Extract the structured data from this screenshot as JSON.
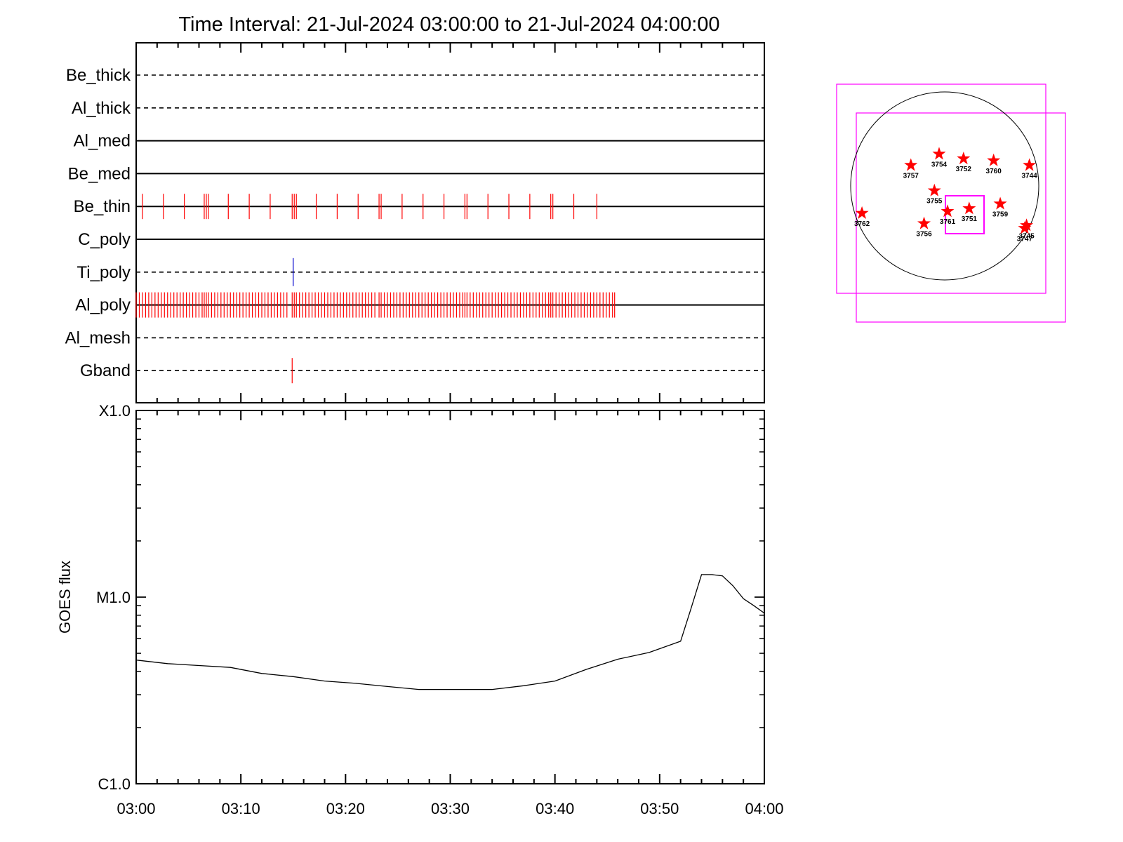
{
  "title": "Time Interval: 21-Jul-2024 03:00:00 to 21-Jul-2024 04:00:00",
  "chart_data": [
    {
      "type": "event-timeline",
      "x_start": "03:00",
      "x_end": "04:00",
      "channels": [
        {
          "name": "Be_thick",
          "line_style": "dashed",
          "events": [],
          "event_color": ""
        },
        {
          "name": "Al_thick",
          "line_style": "dashed",
          "events": [],
          "event_color": ""
        },
        {
          "name": "Al_med",
          "line_style": "solid",
          "events": [],
          "event_color": ""
        },
        {
          "name": "Be_med",
          "line_style": "solid",
          "events": [],
          "event_color": ""
        },
        {
          "name": "Be_thin",
          "line_style": "solid",
          "event_color": "#ff0000",
          "events": [
            0.6,
            2.6,
            4.6,
            6.5,
            6.7,
            6.9,
            8.8,
            10.8,
            12.8,
            14.9,
            15.1,
            15.3,
            17.2,
            19.2,
            21.2,
            23.2,
            23.4,
            25.4,
            27.4,
            29.4,
            31.4,
            31.6,
            33.6,
            35.6,
            37.6,
            39.6,
            39.8,
            41.8,
            44.0
          ],
          "event_half_height": 18
        },
        {
          "name": "C_poly",
          "line_style": "solid",
          "events": [],
          "event_color": ""
        },
        {
          "name": "Ti_poly",
          "line_style": "dashed",
          "event_color": "#0000cc",
          "events": [
            15.0
          ],
          "event_half_height": 20
        },
        {
          "name": "Al_poly",
          "line_style": "solid",
          "event_color": "#ff0000",
          "events": [
            0.0,
            0.3,
            0.6,
            0.9,
            1.2,
            1.5,
            1.8,
            2.1,
            2.4,
            2.7,
            3.0,
            3.3,
            3.6,
            3.9,
            4.2,
            4.5,
            4.8,
            5.1,
            5.4,
            5.7,
            6.0,
            6.3,
            6.5,
            6.7,
            6.9,
            7.2,
            7.5,
            7.8,
            8.1,
            8.4,
            8.7,
            9.0,
            9.3,
            9.6,
            9.9,
            10.2,
            10.5,
            10.8,
            11.1,
            11.4,
            11.7,
            12.0,
            12.3,
            12.6,
            12.9,
            13.2,
            13.5,
            13.8,
            14.1,
            14.4,
            14.9,
            15.1,
            15.3,
            15.6,
            15.9,
            16.2,
            16.5,
            16.8,
            17.1,
            17.4,
            17.7,
            18.0,
            18.3,
            18.6,
            18.9,
            19.2,
            19.5,
            19.8,
            20.1,
            20.4,
            20.7,
            21.0,
            21.3,
            21.6,
            21.9,
            22.2,
            22.5,
            22.8,
            23.2,
            23.4,
            23.7,
            24.0,
            24.3,
            24.6,
            24.9,
            25.2,
            25.5,
            25.8,
            26.1,
            26.4,
            26.7,
            27.0,
            27.3,
            27.6,
            27.9,
            28.2,
            28.5,
            28.8,
            29.1,
            29.4,
            29.7,
            30.0,
            30.3,
            30.6,
            30.9,
            31.2,
            31.4,
            31.6,
            31.9,
            32.2,
            32.5,
            32.8,
            33.1,
            33.4,
            33.7,
            34.0,
            34.3,
            34.6,
            34.9,
            35.2,
            35.5,
            35.8,
            36.1,
            36.4,
            36.7,
            37.0,
            37.3,
            37.6,
            37.9,
            38.2,
            38.5,
            38.8,
            39.1,
            39.4,
            39.6,
            39.8,
            40.1,
            40.4,
            40.7,
            41.0,
            41.3,
            41.6,
            41.9,
            42.2,
            42.5,
            42.8,
            43.1,
            43.4,
            43.7,
            44.0,
            44.3,
            44.6,
            44.9,
            45.2,
            45.5,
            45.7
          ],
          "event_half_height": 18
        },
        {
          "name": "Al_mesh",
          "line_style": "dashed",
          "events": [],
          "event_color": ""
        },
        {
          "name": "Gband",
          "line_style": "dashed",
          "event_color": "#ff0000",
          "events": [
            14.9
          ],
          "event_half_height": 18
        }
      ]
    },
    {
      "type": "line",
      "ylabel": "GOES flux",
      "y_scale": "log",
      "y_ticklabels": [
        "C1.0",
        "M1.0",
        "X1.0"
      ],
      "y_tick_values": [
        1e-06,
        1e-05,
        0.0001
      ],
      "ylim": [
        1e-06,
        0.0001
      ],
      "x_ticklabels": [
        "03:00",
        "03:10",
        "03:20",
        "03:30",
        "03:40",
        "03:50",
        "04:00"
      ],
      "x_tick_minutes": [
        0,
        10,
        20,
        30,
        40,
        50,
        60
      ],
      "xlim": [
        0,
        60
      ],
      "series": [
        {
          "color": "#000000",
          "x": [
            0,
            3,
            6,
            9,
            12,
            15,
            18,
            21,
            24,
            27,
            30,
            34,
            37,
            40,
            43,
            46,
            49,
            52,
            53,
            54,
            55,
            56,
            57,
            58,
            59,
            60
          ],
          "y": [
            4.6e-06,
            4.4e-06,
            4.3e-06,
            4.2e-06,
            3.9e-06,
            3.75e-06,
            3.55e-06,
            3.45e-06,
            3.32e-06,
            3.2e-06,
            3.2e-06,
            3.2e-06,
            3.35e-06,
            3.55e-06,
            4.1e-06,
            4.65e-06,
            5.05e-06,
            5.8e-06,
            8.7e-06,
            1.32e-05,
            1.32e-05,
            1.3e-05,
            1.15e-05,
            9.8e-06,
            9e-06,
            8.2e-06
          ]
        }
      ]
    },
    {
      "type": "scatter",
      "subtype": "solar-disk-map",
      "marker": "star",
      "marker_color": "#ff0000",
      "box_color": "#ff00ff",
      "points": [
        {
          "label": "3757",
          "x": -0.36,
          "y": 0.22
        },
        {
          "label": "3754",
          "x": -0.06,
          "y": 0.34
        },
        {
          "label": "3752",
          "x": 0.2,
          "y": 0.29
        },
        {
          "label": "3760",
          "x": 0.52,
          "y": 0.27
        },
        {
          "label": "3744",
          "x": 0.9,
          "y": 0.22
        },
        {
          "label": "3755",
          "x": -0.11,
          "y": -0.05
        },
        {
          "label": "3759",
          "x": 0.59,
          "y": -0.19
        },
        {
          "label": "3762",
          "x": -0.88,
          "y": -0.29
        },
        {
          "label": "3761",
          "x": 0.03,
          "y": -0.27
        },
        {
          "label": "3751",
          "x": 0.26,
          "y": -0.24
        },
        {
          "label": "3756",
          "x": -0.22,
          "y": -0.4
        },
        {
          "label": "3745",
          "x": 0.87,
          "y": -0.42
        },
        {
          "label": "3747",
          "x": 0.85,
          "y": -0.45
        }
      ]
    }
  ]
}
